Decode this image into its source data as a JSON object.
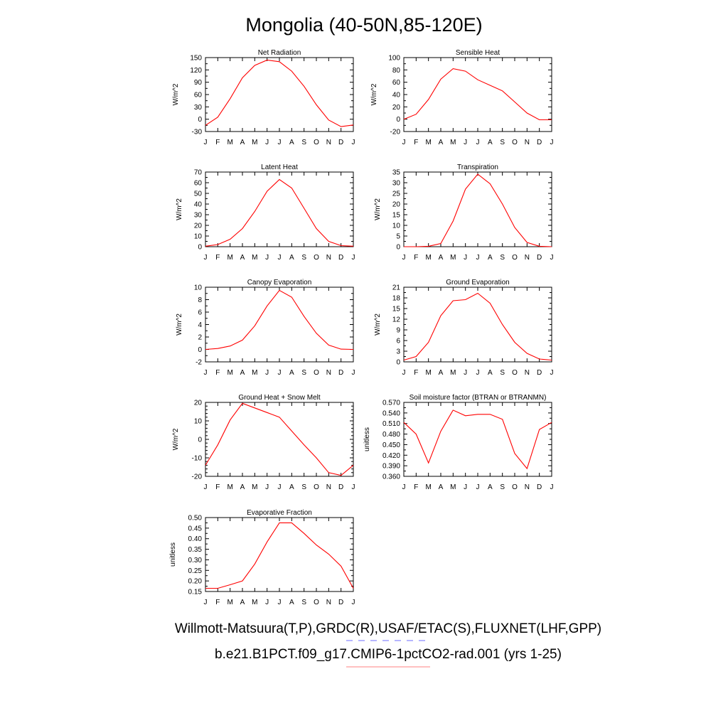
{
  "title": "Mongolia (40-50N,85-120E)",
  "caption_line1": "Willmott-Matsuura(T,P),GRDC(R),USAF/ETAC(S),FLUXNET(LHF,GPP)",
  "caption_line2": "b.e21.B1PCT.f09_g17.CMIP6-1pctCO2-rad.001 (yrs 1-25)",
  "colors": {
    "series": "#ff0000",
    "dash_legend": "#8a8aff",
    "solid_legend": "#ff9a9a"
  },
  "chart_data": [
    {
      "type": "line",
      "title": "Net Radiation",
      "ylabel": "W/m^2",
      "x": [
        "J",
        "F",
        "M",
        "A",
        "M",
        "J",
        "J",
        "A",
        "S",
        "O",
        "N",
        "D",
        "J"
      ],
      "yticks": [
        "150",
        "120",
        "90",
        "60",
        "30",
        "0",
        "-30"
      ],
      "ylim": [
        -30,
        150
      ],
      "values": [
        -15,
        5,
        50,
        101,
        131,
        144,
        140,
        117,
        80,
        35,
        -2,
        -18,
        -14
      ]
    },
    {
      "type": "line",
      "title": "Sensible Heat",
      "ylabel": "W/m^2",
      "x": [
        "J",
        "F",
        "M",
        "A",
        "M",
        "J",
        "J",
        "A",
        "S",
        "O",
        "N",
        "D",
        "J"
      ],
      "yticks": [
        "100",
        "80",
        "60",
        "40",
        "20",
        "0",
        "-20"
      ],
      "ylim": [
        -20,
        100
      ],
      "values": [
        0,
        8,
        32,
        65,
        82,
        78,
        64,
        55,
        46,
        28,
        10,
        -1,
        -1
      ]
    },
    {
      "type": "line",
      "title": "Latent Heat",
      "ylabel": "W/m^2",
      "x": [
        "J",
        "F",
        "M",
        "A",
        "M",
        "J",
        "J",
        "A",
        "S",
        "O",
        "N",
        "D",
        "J"
      ],
      "yticks": [
        "70",
        "60",
        "50",
        "40",
        "30",
        "20",
        "10",
        "0"
      ],
      "ylim": [
        0,
        70
      ],
      "values": [
        0.5,
        2,
        7,
        17,
        33,
        52,
        63,
        55,
        36,
        17,
        5,
        1,
        0.5
      ]
    },
    {
      "type": "line",
      "title": "Transpiration",
      "ylabel": "W/m^2",
      "x": [
        "J",
        "F",
        "M",
        "A",
        "M",
        "J",
        "J",
        "A",
        "S",
        "O",
        "N",
        "D",
        "J"
      ],
      "yticks": [
        "35",
        "30",
        "25",
        "20",
        "15",
        "10",
        "5",
        "0"
      ],
      "ylim": [
        0,
        35
      ],
      "values": [
        0,
        0,
        0.2,
        1.5,
        12,
        27,
        34,
        29.5,
        20,
        9,
        2,
        0.2,
        0
      ]
    },
    {
      "type": "line",
      "title": "Canopy Evaporation",
      "ylabel": "W/m^2",
      "x": [
        "J",
        "F",
        "M",
        "A",
        "M",
        "J",
        "J",
        "A",
        "S",
        "O",
        "N",
        "D",
        "J"
      ],
      "yticks": [
        "10",
        "8",
        "6",
        "4",
        "2",
        "0",
        "-2"
      ],
      "ylim": [
        -2,
        10
      ],
      "values": [
        0,
        0.15,
        0.55,
        1.5,
        3.8,
        7,
        9.5,
        8.4,
        5.3,
        2.6,
        0.7,
        0.05,
        0
      ]
    },
    {
      "type": "line",
      "title": "Ground Evaporation",
      "ylabel": "W/m^2",
      "x": [
        "J",
        "F",
        "M",
        "A",
        "M",
        "J",
        "J",
        "A",
        "S",
        "O",
        "N",
        "D",
        "J"
      ],
      "yticks": [
        "21",
        "18",
        "15",
        "12",
        "9",
        "6",
        "3",
        "0"
      ],
      "ylim": [
        0,
        21
      ],
      "values": [
        0.5,
        1.5,
        5.5,
        13,
        17.2,
        17.5,
        19.3,
        16.5,
        10.5,
        5.5,
        2.4,
        0.8,
        0.5
      ]
    },
    {
      "type": "line",
      "title": "Ground Heat + Snow Melt",
      "ylabel": "W/m^2",
      "x": [
        "J",
        "F",
        "M",
        "A",
        "M",
        "J",
        "J",
        "A",
        "S",
        "O",
        "N",
        "D",
        "J"
      ],
      "yticks": [
        "20",
        "10",
        "0",
        "-10",
        "-20"
      ],
      "ylim": [
        -20,
        20
      ],
      "values": [
        -14,
        -3,
        10.5,
        19.5,
        17,
        14.5,
        12,
        4.5,
        -3,
        -10,
        -18,
        -19.5,
        -14
      ]
    },
    {
      "type": "line",
      "title": "Soil moisture factor (BTRAN or BTRANMN)",
      "ylabel": "unitless",
      "x": [
        "J",
        "F",
        "M",
        "A",
        "M",
        "J",
        "J",
        "A",
        "S",
        "O",
        "N",
        "D",
        "J"
      ],
      "yticks": [
        "0.570",
        "0.540",
        "0.510",
        "0.480",
        "0.450",
        "0.420",
        "0.390",
        "0.360"
      ],
      "ylim": [
        0.36,
        0.57
      ],
      "values": [
        0.513,
        0.48,
        0.398,
        0.488,
        0.548,
        0.532,
        0.536,
        0.536,
        0.522,
        0.425,
        0.382,
        0.493,
        0.513
      ]
    },
    {
      "type": "line",
      "title": "Evaporative Fraction",
      "ylabel": "unitless",
      "x": [
        "J",
        "F",
        "M",
        "A",
        "M",
        "J",
        "J",
        "A",
        "S",
        "O",
        "N",
        "D",
        "J"
      ],
      "yticks": [
        "0.50",
        "0.45",
        "0.40",
        "0.35",
        "0.30",
        "0.25",
        "0.20",
        "0.15"
      ],
      "ylim": [
        0.15,
        0.5
      ],
      "values": [
        0.165,
        0.165,
        0.182,
        0.2,
        0.28,
        0.385,
        0.475,
        0.475,
        0.425,
        0.37,
        0.327,
        0.27,
        0.165
      ]
    }
  ]
}
